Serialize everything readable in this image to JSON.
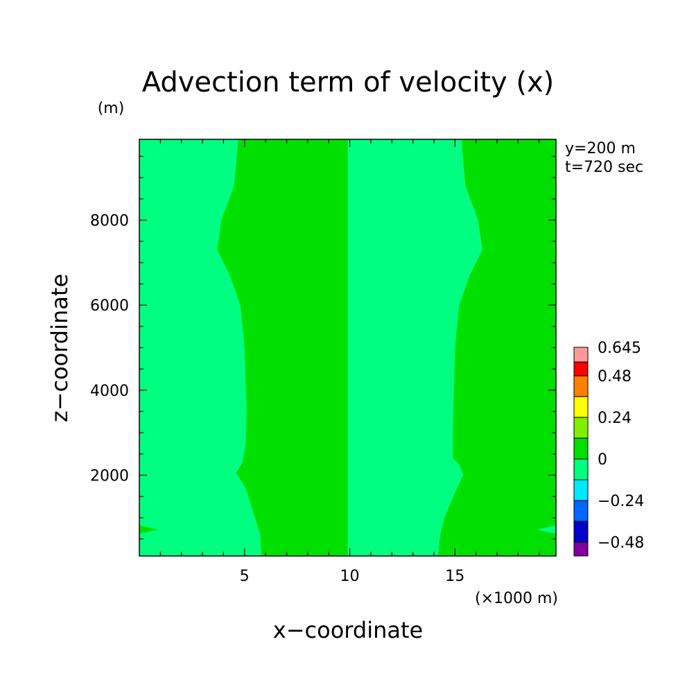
{
  "chart_data": {
    "type": "heatmap",
    "title": "Advection term of velocity (x)",
    "xlabel": "x−coordinate",
    "ylabel": "z−coordinate",
    "x_unit": "(×1000 m)",
    "y_unit": "(m)",
    "annotations": [
      "y=200 m",
      "t=720 sec"
    ],
    "xlim": [
      0,
      19.8
    ],
    "ylim": [
      100,
      9900
    ],
    "x_ticks": [
      5,
      10,
      15
    ],
    "x_tick_labels": [
      "5",
      "10",
      "15"
    ],
    "y_ticks": [
      2000,
      4000,
      6000,
      8000
    ],
    "y_tick_labels": [
      "2000",
      "4000",
      "6000",
      "8000"
    ],
    "colorbar": {
      "labels": [
        "0.645",
        "0.48",
        "0.24",
        "0",
        "−0.24",
        "−0.48"
      ],
      "levels": [
        {
          "range": [
            0.56,
            0.645
          ],
          "color": "#ff9999"
        },
        {
          "range": [
            0.48,
            0.56
          ],
          "color": "#ff0000"
        },
        {
          "range": [
            0.36,
            0.48
          ],
          "color": "#ff7f00"
        },
        {
          "range": [
            0.24,
            0.36
          ],
          "color": "#ffff00"
        },
        {
          "range": [
            0.12,
            0.24
          ],
          "color": "#80f000"
        },
        {
          "range": [
            0.0,
            0.12
          ],
          "color": "#00e000"
        },
        {
          "range": [
            -0.12,
            0.0
          ],
          "color": "#00ff80"
        },
        {
          "range": [
            -0.24,
            -0.12
          ],
          "color": "#00e8ff"
        },
        {
          "range": [
            -0.36,
            -0.24
          ],
          "color": "#0066ff"
        },
        {
          "range": [
            -0.48,
            -0.36
          ],
          "color": "#0000cc"
        },
        {
          "range": [
            -0.56,
            -0.48
          ],
          "color": "#800099"
        }
      ]
    },
    "regions": [
      {
        "name": "positive-band-left",
        "color": "#00e000",
        "x_boundary_left": [
          {
            "z": 100,
            "x": 5.8
          },
          {
            "z": 600,
            "x": 5.75
          },
          {
            "z": 1000,
            "x": 5.5
          },
          {
            "z": 1700,
            "x": 5.05
          },
          {
            "z": 2050,
            "x": 4.6
          },
          {
            "z": 2300,
            "x": 4.9
          },
          {
            "z": 2700,
            "x": 5.05
          },
          {
            "z": 3500,
            "x": 5.1
          },
          {
            "z": 5000,
            "x": 5.0
          },
          {
            "z": 6000,
            "x": 4.8
          },
          {
            "z": 6700,
            "x": 4.3
          },
          {
            "z": 7300,
            "x": 3.7
          },
          {
            "z": 8000,
            "x": 3.9
          },
          {
            "z": 8800,
            "x": 4.5
          },
          {
            "z": 9900,
            "x": 4.7
          }
        ],
        "x_right": 9.9
      },
      {
        "name": "positive-band-right",
        "color": "#00e000",
        "x_boundary_left": [
          {
            "z": 100,
            "x": 14.2
          },
          {
            "z": 600,
            "x": 14.3
          },
          {
            "z": 1000,
            "x": 14.5
          },
          {
            "z": 1700,
            "x": 15.1
          },
          {
            "z": 2000,
            "x": 15.4
          },
          {
            "z": 2250,
            "x": 15.2
          },
          {
            "z": 2400,
            "x": 14.9
          },
          {
            "z": 3000,
            "x": 14.9
          },
          {
            "z": 5000,
            "x": 15.0
          },
          {
            "z": 6000,
            "x": 15.2
          },
          {
            "z": 6700,
            "x": 15.7
          },
          {
            "z": 7300,
            "x": 16.3
          },
          {
            "z": 8000,
            "x": 16.1
          },
          {
            "z": 8800,
            "x": 15.5
          },
          {
            "z": 9900,
            "x": 15.3
          }
        ],
        "x_right": 19.8
      },
      {
        "name": "positive-wedge-left-edge",
        "color": "#00e000",
        "polygon": [
          {
            "x": 0,
            "z": 620
          },
          {
            "x": 0.9,
            "z": 720
          },
          {
            "x": 0,
            "z": 820
          }
        ]
      },
      {
        "name": "negative-wedge-right-edge",
        "color": "#00ff80",
        "polygon": [
          {
            "x": 19.8,
            "z": 620
          },
          {
            "x": 18.9,
            "z": 720
          },
          {
            "x": 19.8,
            "z": 820
          }
        ]
      }
    ],
    "background_color": "#00ff80"
  }
}
